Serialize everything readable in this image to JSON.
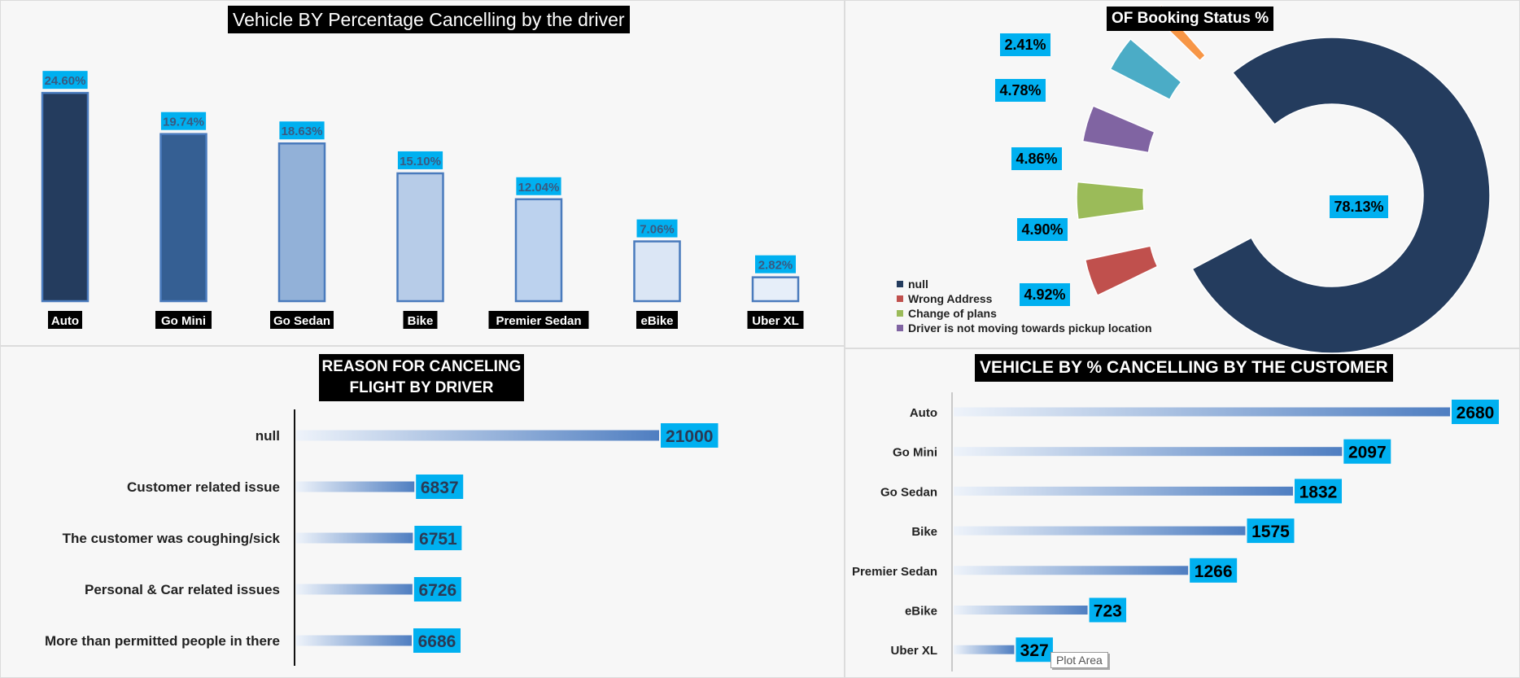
{
  "chart_data": [
    {
      "type": "bar",
      "title": "Vehicle BY Percentage Cancelling by the driver",
      "categories": [
        "Auto",
        "Go Mini",
        "Go Sedan",
        "Bike",
        "Premier Sedan",
        "eBike",
        "Uber XL"
      ],
      "values": [
        24.6,
        19.74,
        18.63,
        15.1,
        12.04,
        7.06,
        2.82
      ],
      "labels": [
        "24.60%",
        "19.74%",
        "18.63%",
        "15.10%",
        "12.04%",
        "7.06%",
        "2.82%"
      ],
      "colors": [
        "#243c5e",
        "#355f93",
        "#92b1d8",
        "#b7cce8",
        "#bcd2ee",
        "#dbe6f5",
        "#e6eef9"
      ],
      "ylim": [
        0,
        25
      ]
    },
    {
      "type": "pie",
      "title": "OF Booking Status %",
      "slices": [
        {
          "name": "null",
          "value": 78.13,
          "label": "78.13%",
          "color": "#243c5e"
        },
        {
          "name": "Wrong Address",
          "value": 4.92,
          "label": "4.92%",
          "color": "#c0504d"
        },
        {
          "name": "Change of plans",
          "value": 4.9,
          "label": "4.90%",
          "color": "#9bbb59"
        },
        {
          "name": "Driver is not moving towards pickup location",
          "value": 4.86,
          "label": "4.86%",
          "color": "#8064a2"
        },
        {
          "name": "",
          "value": 4.78,
          "label": "4.78%",
          "color": "#4bacc6"
        },
        {
          "name": "",
          "value": 2.41,
          "label": "2.41%",
          "color": "#f79646"
        }
      ],
      "legend": [
        {
          "name": "null",
          "color": "#243c5e"
        },
        {
          "name": "Wrong Address",
          "color": "#c0504d"
        },
        {
          "name": "Change of plans",
          "color": "#9bbb59"
        },
        {
          "name": "Driver is not moving towards pickup location",
          "color": "#8064a2"
        }
      ],
      "legend_position": "bottom-left"
    },
    {
      "type": "bar",
      "orientation": "horizontal",
      "title_lines": [
        "REASON FOR CANCELING",
        "FLIGHT BY DRIVER"
      ],
      "categories": [
        "null",
        "Customer related issue",
        "The customer was coughing/sick",
        "Personal & Car related issues",
        "More than permitted people in there"
      ],
      "values": [
        21000,
        6837,
        6751,
        6726,
        6686
      ],
      "xlim": [
        0,
        21000
      ]
    },
    {
      "type": "bar",
      "orientation": "horizontal",
      "title": "VEHICLE BY % CANCELLING BY THE CUSTOMER",
      "categories": [
        "Auto",
        "Go Mini",
        "Go Sedan",
        "Bike",
        "Premier Sedan",
        "eBike",
        "Uber XL"
      ],
      "values": [
        2680,
        2097,
        1832,
        1575,
        1266,
        723,
        327
      ],
      "xlim": [
        0,
        2680
      ]
    }
  ],
  "tooltip": "Plot Area",
  "colors": {
    "label_bg": "#00b0f0",
    "bar_grad_start": "#eef3fa",
    "bar_grad_end": "#4f7ec1"
  }
}
